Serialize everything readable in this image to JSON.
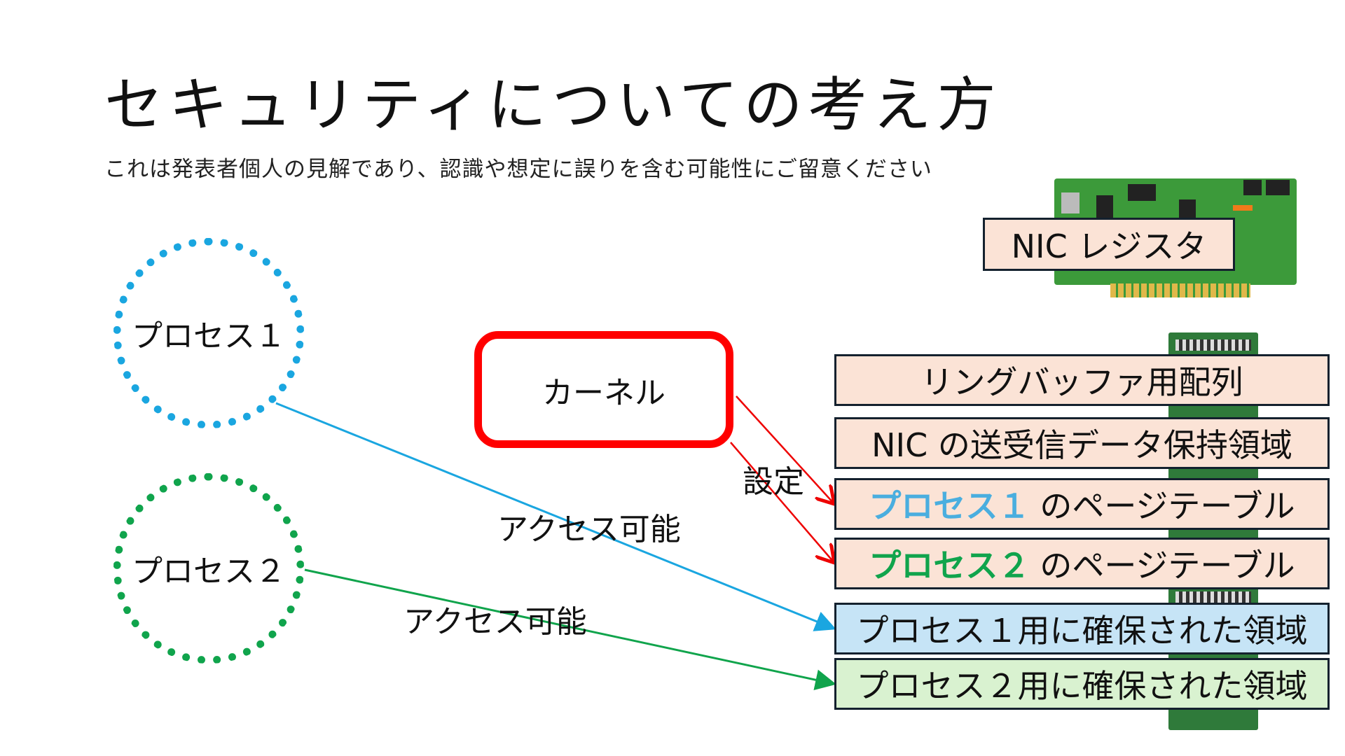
{
  "title": "セキュリティについての考え方",
  "subtitle": "これは発表者個人の見解であり、認識や想定に誤りを含む可能性にご留意ください",
  "processes": [
    {
      "label": "プロセス１",
      "color": "#1aa6e0"
    },
    {
      "label": "プロセス２",
      "color": "#10a44c"
    }
  ],
  "kernel": {
    "label": "カーネル",
    "color": "#ff0000"
  },
  "edge_labels": {
    "configure": "設定",
    "access1": "アクセス可能",
    "access2": "アクセス可能"
  },
  "nic_register": "NIC レジスタ",
  "memory": {
    "ring_buffer": "リングバッファ用配列",
    "nic_data": "NIC の送受信データ保持領域",
    "pt1_proc": "プロセス１",
    "pt1_rest": "のページテーブル",
    "pt2_proc": "プロセス２",
    "pt2_rest": "のページテーブル",
    "region1": "プロセス１用に確保された領域",
    "region2": "プロセス２用に確保された領域"
  },
  "colors": {
    "peach": "#fbe3d6",
    "light_blue": "#c6e4f6",
    "light_green": "#d9f2d0",
    "process1_text": "#4aaedf",
    "process2_text": "#10a44c"
  }
}
